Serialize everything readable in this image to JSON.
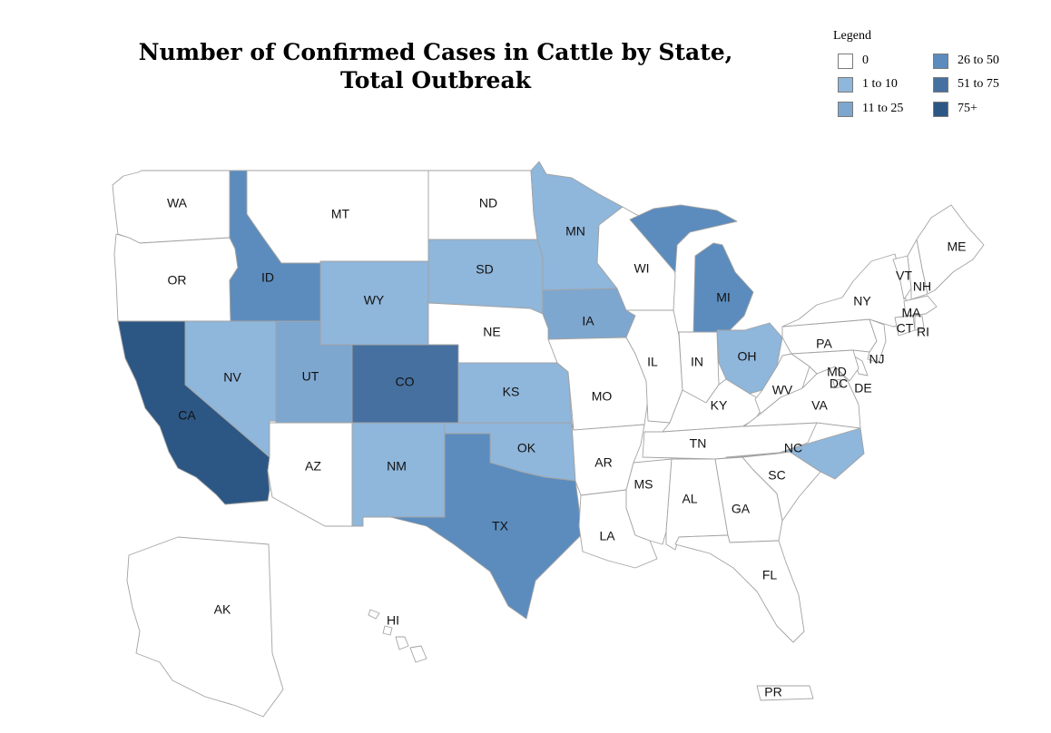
{
  "title": {
    "line1": "Number of Confirmed Cases in Cattle by State,",
    "line2": "Total Outbreak"
  },
  "legend": {
    "title": "Legend",
    "items": [
      {
        "label": "0",
        "color": "#ffffff"
      },
      {
        "label": "1 to 10",
        "color": "#8fb6db"
      },
      {
        "label": "11 to 25",
        "color": "#7ea7cf"
      },
      {
        "label": "26 to 50",
        "color": "#5b8cbd"
      },
      {
        "label": "51 to 75",
        "color": "#46709f"
      },
      {
        "label": "75+",
        "color": "#2c5784"
      }
    ]
  },
  "states": [
    {
      "code": "WA",
      "category": 0
    },
    {
      "code": "OR",
      "category": 0
    },
    {
      "code": "CA",
      "category": 5
    },
    {
      "code": "NV",
      "category": 1
    },
    {
      "code": "ID",
      "category": 3
    },
    {
      "code": "MT",
      "category": 0
    },
    {
      "code": "WY",
      "category": 1
    },
    {
      "code": "UT",
      "category": 2
    },
    {
      "code": "AZ",
      "category": 0
    },
    {
      "code": "CO",
      "category": 4
    },
    {
      "code": "NM",
      "category": 1
    },
    {
      "code": "ND",
      "category": 0
    },
    {
      "code": "SD",
      "category": 1
    },
    {
      "code": "NE",
      "category": 0
    },
    {
      "code": "KS",
      "category": 1
    },
    {
      "code": "OK",
      "category": 1
    },
    {
      "code": "TX",
      "category": 3
    },
    {
      "code": "MN",
      "category": 1
    },
    {
      "code": "IA",
      "category": 2
    },
    {
      "code": "MO",
      "category": 0
    },
    {
      "code": "AR",
      "category": 0
    },
    {
      "code": "LA",
      "category": 0
    },
    {
      "code": "WI",
      "category": 0
    },
    {
      "code": "IL",
      "category": 0
    },
    {
      "code": "MI",
      "category": 3
    },
    {
      "code": "IN",
      "category": 0
    },
    {
      "code": "OH",
      "category": 1
    },
    {
      "code": "KY",
      "category": 0
    },
    {
      "code": "TN",
      "category": 0
    },
    {
      "code": "MS",
      "category": 0
    },
    {
      "code": "AL",
      "category": 0
    },
    {
      "code": "GA",
      "category": 0
    },
    {
      "code": "FL",
      "category": 0
    },
    {
      "code": "SC",
      "category": 0
    },
    {
      "code": "NC",
      "category": 1
    },
    {
      "code": "VA",
      "category": 0
    },
    {
      "code": "WV",
      "category": 0
    },
    {
      "code": "PA",
      "category": 0
    },
    {
      "code": "NY",
      "category": 0
    },
    {
      "code": "VT",
      "category": 0
    },
    {
      "code": "NH",
      "category": 0
    },
    {
      "code": "ME",
      "category": 0
    },
    {
      "code": "MA",
      "category": 0
    },
    {
      "code": "CT",
      "category": 0
    },
    {
      "code": "RI",
      "category": 0
    },
    {
      "code": "NJ",
      "category": 0
    },
    {
      "code": "DE",
      "category": 0
    },
    {
      "code": "MD",
      "category": 0
    },
    {
      "code": "DC",
      "category": 0
    },
    {
      "code": "AK",
      "category": 0
    },
    {
      "code": "HI",
      "category": 0
    },
    {
      "code": "PR",
      "category": 0
    }
  ]
}
